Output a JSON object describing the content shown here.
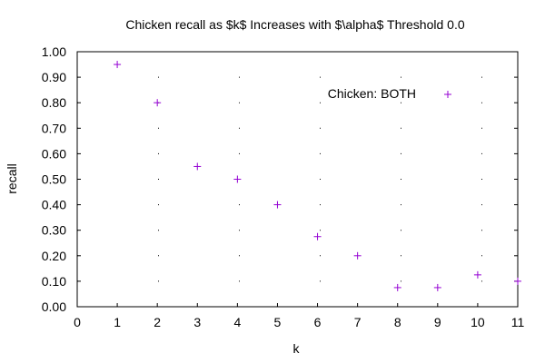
{
  "chart_data": {
    "type": "scatter",
    "title": "Chicken recall as $k$ Increases with $\\alpha$ Threshold 0.0",
    "xlabel": "k",
    "ylabel": "recall",
    "xlim": [
      0,
      11
    ],
    "ylim": [
      0,
      1
    ],
    "x_ticks": [
      "0",
      "1",
      "2",
      "3",
      "4",
      "5",
      "6",
      "7",
      "8",
      "9",
      "10",
      "11"
    ],
    "y_ticks": [
      "0.00",
      "0.10",
      "0.20",
      "0.30",
      "0.40",
      "0.50",
      "0.60",
      "0.70",
      "0.80",
      "0.90",
      "1.00"
    ],
    "grid": "dotted (at tick positions)",
    "legend_position": "top-right",
    "marker": "+",
    "series": [
      {
        "name": "Chicken: BOTH",
        "color": "#9400d3",
        "x": [
          1,
          2,
          3,
          4,
          5,
          6,
          7,
          8,
          9,
          10,
          11
        ],
        "y": [
          0.95,
          0.8,
          0.55,
          0.5,
          0.4,
          0.275,
          0.2,
          0.075,
          0.075,
          0.125,
          0.1
        ]
      }
    ]
  }
}
